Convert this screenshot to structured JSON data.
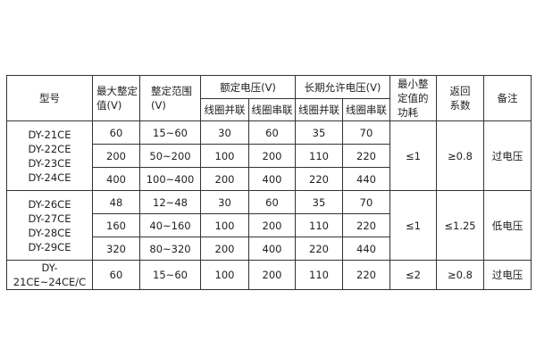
{
  "headers": {
    "model": "型号",
    "max": "最大整定值(V)",
    "range": "整定范围(V)",
    "rated": "额定电压(V)",
    "longterm": "长期允许电压(V)",
    "parallel": "线圈并联",
    "series": "线圈串联",
    "power": "最小整定值的功耗",
    "ret": "返回系数",
    "note": "备注"
  },
  "groups": [
    {
      "models": [
        "DY-21CE",
        "DY-22CE",
        "DY-23CE",
        "DY-24CE"
      ],
      "rows": [
        [
          "60",
          "15~60",
          "30",
          "60",
          "35",
          "70"
        ],
        [
          "200",
          "50~200",
          "100",
          "200",
          "110",
          "220"
        ],
        [
          "400",
          "100~400",
          "200",
          "400",
          "220",
          "440"
        ]
      ],
      "power": "≤1",
      "ret": "≥0.8",
      "note": "过电压"
    },
    {
      "models": [
        "DY-26CE",
        "DY-27CE",
        "DY-28CE",
        "DY-29CE"
      ],
      "rows": [
        [
          "48",
          "12~48",
          "30",
          "60",
          "35",
          "70"
        ],
        [
          "160",
          "40~160",
          "100",
          "200",
          "110",
          "220"
        ],
        [
          "320",
          "80~320",
          "200",
          "400",
          "220",
          "440"
        ]
      ],
      "power": "≤1",
      "ret": "≤1.25",
      "note": "低电压"
    },
    {
      "models": [
        "DY-21CE~24CE/C"
      ],
      "rows": [
        [
          "60",
          "15~60",
          "100",
          "200",
          "110",
          "220"
        ]
      ],
      "power": "≤2",
      "ret": "≥0.8",
      "note": "过电压"
    }
  ]
}
